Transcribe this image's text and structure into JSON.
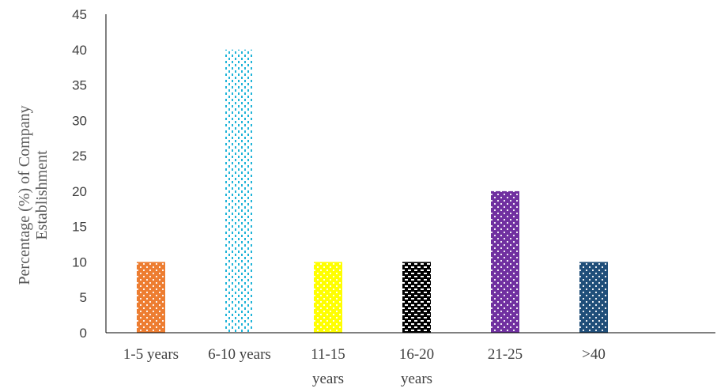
{
  "chart_data": {
    "type": "bar",
    "title": "",
    "xlabel": "",
    "ylabel_lines": [
      "Percentage (%) of Company",
      "Establishment"
    ],
    "categories": [
      [
        "1-5 years"
      ],
      [
        "6-10 years"
      ],
      [
        "11-15",
        "years"
      ],
      [
        "16-20",
        "years"
      ],
      [
        "21-25"
      ],
      [
        ">40"
      ]
    ],
    "values": [
      10,
      40,
      10,
      10,
      20,
      10
    ],
    "ylim": [
      0,
      45
    ],
    "yticks": [
      0,
      5,
      10,
      15,
      20,
      25,
      30,
      35,
      40,
      45
    ],
    "grid": false,
    "legend": "none",
    "colors": [
      "#ED7D31",
      "#1FB4D8",
      "#FFFF00",
      "#000000",
      "#7030A0",
      "#1F4E79"
    ],
    "patterns": [
      "dots-white",
      "dots-outline",
      "dots-white",
      "dashes-white",
      "dots-white",
      "dots-white"
    ],
    "axis_color": "#000000"
  }
}
